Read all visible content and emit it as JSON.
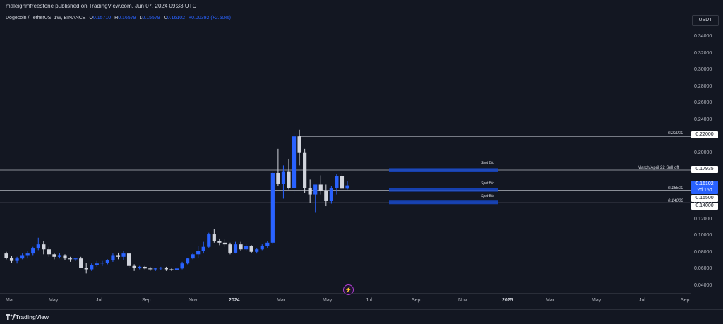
{
  "header": {
    "published": "maleighmfreestone published on TradingView.com, Jun 07, 2024 09:33 UTC"
  },
  "legend": {
    "symbol": "Dogecoin / TetherUS, 1W, BINANCE",
    "o_label": "O",
    "o_value": "0.15710",
    "h_label": "H",
    "h_value": "0.16579",
    "l_label": "L",
    "l_value": "0.15579",
    "c_label": "C",
    "c_value": "0.16102",
    "change": "+0.00392 (+2.50%)"
  },
  "currency_button": "USDT",
  "price_axis": {
    "ticks": [
      "0.34000",
      "0.32000",
      "0.30000",
      "0.28000",
      "0.26000",
      "0.24000",
      "0.22000",
      "0.20000",
      "0.18000",
      "0.16000",
      "0.14000",
      "0.12000",
      "0.10000",
      "0.08000",
      "0.06000",
      "0.04000"
    ]
  },
  "time_axis": {
    "ticks": [
      "Mar",
      "May",
      "Jul",
      "Sep",
      "Nov",
      "2024",
      "Mar",
      "May",
      "Jul",
      "Sep",
      "Nov",
      "2025",
      "Mar",
      "May",
      "Jul",
      "Sep"
    ]
  },
  "price_tags": {
    "high": "0.22000",
    "sell": "0.17935",
    "current": "0.16102",
    "countdown": "2d 15h",
    "support1": "0.15500",
    "support2": "0.14000"
  },
  "lines": {
    "high_label": "0.22000",
    "sell_label": "March/April 22 Sell off",
    "support1_label": "0.15500",
    "support2_label": "0.14000"
  },
  "spot_bids": [
    "Spot Bid",
    "Spot Bid",
    "Spot Bid"
  ],
  "footer": {
    "brand": "TradingView"
  },
  "colors": {
    "up": "#2962ff",
    "down": "#d1d4dc",
    "background": "#131722",
    "zone": "#1848c8"
  },
  "chart_data": {
    "type": "candlestick",
    "x_range": [
      "2023-03",
      "2025-09"
    ],
    "ylim": [
      0.03,
      0.35
    ],
    "horizontal_levels": [
      0.22,
      0.17935,
      0.155,
      0.14
    ],
    "candles_ohlc": [
      [
        0.079,
        0.081,
        0.072,
        0.074
      ],
      [
        0.074,
        0.076,
        0.068,
        0.07
      ],
      [
        0.07,
        0.075,
        0.067,
        0.073
      ],
      [
        0.073,
        0.079,
        0.072,
        0.077
      ],
      [
        0.077,
        0.082,
        0.073,
        0.079
      ],
      [
        0.079,
        0.087,
        0.077,
        0.085
      ],
      [
        0.085,
        0.098,
        0.083,
        0.09
      ],
      [
        0.09,
        0.094,
        0.078,
        0.084
      ],
      [
        0.084,
        0.087,
        0.075,
        0.078
      ],
      [
        0.078,
        0.08,
        0.072,
        0.075
      ],
      [
        0.075,
        0.079,
        0.073,
        0.077
      ],
      [
        0.077,
        0.078,
        0.071,
        0.073
      ],
      [
        0.073,
        0.075,
        0.069,
        0.072
      ],
      [
        0.072,
        0.073,
        0.07,
        0.073
      ],
      [
        0.073,
        0.075,
        0.066,
        0.062
      ],
      [
        0.062,
        0.068,
        0.055,
        0.06
      ],
      [
        0.06,
        0.067,
        0.058,
        0.065
      ],
      [
        0.065,
        0.07,
        0.063,
        0.067
      ],
      [
        0.067,
        0.07,
        0.064,
        0.068
      ],
      [
        0.068,
        0.072,
        0.066,
        0.071
      ],
      [
        0.071,
        0.079,
        0.069,
        0.077
      ],
      [
        0.077,
        0.08,
        0.072,
        0.075
      ],
      [
        0.075,
        0.082,
        0.071,
        0.079
      ],
      [
        0.079,
        0.08,
        0.062,
        0.064
      ],
      [
        0.064,
        0.066,
        0.058,
        0.062
      ],
      [
        0.062,
        0.064,
        0.06,
        0.063
      ],
      [
        0.063,
        0.064,
        0.06,
        0.061
      ],
      [
        0.061,
        0.063,
        0.058,
        0.06
      ],
      [
        0.06,
        0.062,
        0.058,
        0.061
      ],
      [
        0.061,
        0.063,
        0.059,
        0.062
      ],
      [
        0.062,
        0.063,
        0.058,
        0.06
      ],
      [
        0.06,
        0.061,
        0.058,
        0.059
      ],
      [
        0.059,
        0.062,
        0.057,
        0.061
      ],
      [
        0.061,
        0.069,
        0.06,
        0.067
      ],
      [
        0.067,
        0.074,
        0.066,
        0.073
      ],
      [
        0.073,
        0.08,
        0.072,
        0.078
      ],
      [
        0.078,
        0.088,
        0.074,
        0.082
      ],
      [
        0.082,
        0.093,
        0.079,
        0.087
      ],
      [
        0.087,
        0.104,
        0.086,
        0.102
      ],
      [
        0.102,
        0.108,
        0.092,
        0.094
      ],
      [
        0.094,
        0.097,
        0.089,
        0.092
      ],
      [
        0.092,
        0.096,
        0.087,
        0.09
      ],
      [
        0.09,
        0.092,
        0.078,
        0.08
      ],
      [
        0.08,
        0.093,
        0.079,
        0.09
      ],
      [
        0.09,
        0.093,
        0.082,
        0.084
      ],
      [
        0.084,
        0.09,
        0.082,
        0.088
      ],
      [
        0.088,
        0.089,
        0.08,
        0.081
      ],
      [
        0.081,
        0.085,
        0.079,
        0.084
      ],
      [
        0.084,
        0.09,
        0.083,
        0.088
      ],
      [
        0.088,
        0.094,
        0.086,
        0.092
      ],
      [
        0.092,
        0.178,
        0.09,
        0.176
      ],
      [
        0.176,
        0.205,
        0.16,
        0.163
      ],
      [
        0.163,
        0.185,
        0.145,
        0.178
      ],
      [
        0.178,
        0.193,
        0.156,
        0.158
      ],
      [
        0.158,
        0.225,
        0.152,
        0.22
      ],
      [
        0.22,
        0.228,
        0.185,
        0.2
      ],
      [
        0.2,
        0.205,
        0.152,
        0.158
      ],
      [
        0.158,
        0.168,
        0.14,
        0.15
      ],
      [
        0.15,
        0.162,
        0.128,
        0.162
      ],
      [
        0.162,
        0.173,
        0.15,
        0.155
      ],
      [
        0.155,
        0.162,
        0.136,
        0.142
      ],
      [
        0.142,
        0.16,
        0.139,
        0.158
      ],
      [
        0.158,
        0.175,
        0.15,
        0.172
      ],
      [
        0.172,
        0.176,
        0.156,
        0.157
      ],
      [
        0.157,
        0.166,
        0.156,
        0.161
      ]
    ]
  }
}
